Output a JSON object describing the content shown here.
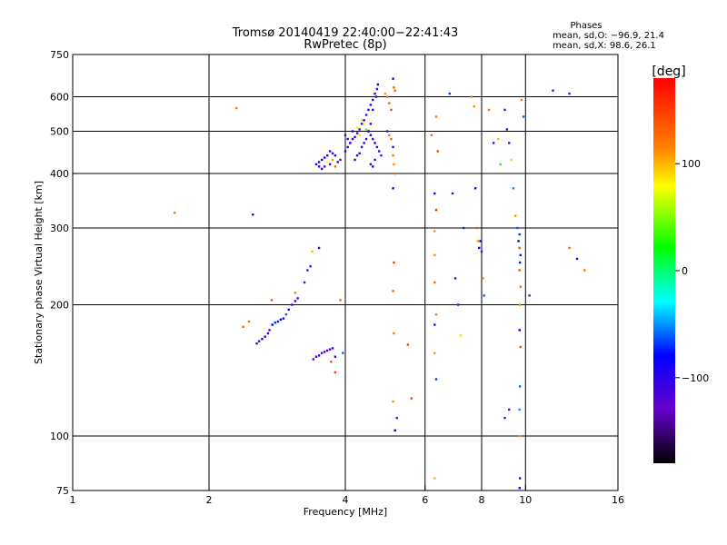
{
  "chart_data": {
    "type": "scatter",
    "title": "Tromsø 20140419 22:40:00−22:41:43",
    "subtitle": "RwPretec (8p)",
    "xlabel": "Frequency [MHz]",
    "ylabel": "Stationary phase Virtual Height [km]",
    "x_scale": "log",
    "y_scale": "log",
    "xlim": [
      1,
      16
    ],
    "ylim": [
      75,
      750
    ],
    "x_ticks": [
      1,
      2,
      4,
      6,
      8,
      10,
      16
    ],
    "y_ticks": [
      75,
      100,
      200,
      300,
      400,
      500,
      600,
      750
    ],
    "x_gridlines": [
      2,
      4,
      6,
      8,
      10
    ],
    "y_gridlines": [
      100,
      200,
      300,
      400,
      500,
      600
    ],
    "grid": true,
    "legend": {
      "header": "Phases",
      "line_o": "mean, sd,O: −96.9, 21.4",
      "line_x": "mean, sd,X:  98.6, 26.1",
      "placement": "top-right"
    },
    "colorbar": {
      "label": "[deg]",
      "range": [
        -180,
        180
      ],
      "ticks": [
        100,
        0,
        -100
      ],
      "tick_labels": [
        "100",
        "0",
        "−100"
      ]
    },
    "series": [
      {
        "values": [
          [
            1.68,
            325,
            120
          ],
          [
            2.3,
            565,
            120
          ],
          [
            2.5,
            322,
            -105
          ],
          [
            2.38,
            178,
            130
          ],
          [
            2.45,
            183,
            125
          ],
          [
            2.55,
            163,
            -110
          ],
          [
            2.58,
            165,
            -105
          ],
          [
            2.62,
            167,
            -100
          ],
          [
            2.66,
            169,
            -95
          ],
          [
            2.7,
            172,
            -100
          ],
          [
            2.72,
            175,
            -110
          ],
          [
            2.76,
            180,
            -80
          ],
          [
            2.8,
            182,
            -70
          ],
          [
            2.84,
            183,
            -75
          ],
          [
            2.88,
            185,
            -80
          ],
          [
            2.92,
            186,
            -90
          ],
          [
            2.96,
            190,
            -60
          ],
          [
            2.75,
            205,
            140
          ],
          [
            3.0,
            195,
            -100
          ],
          [
            3.05,
            200,
            -110
          ],
          [
            3.1,
            204,
            -120
          ],
          [
            3.14,
            207,
            -115
          ],
          [
            3.1,
            213,
            120
          ],
          [
            3.25,
            225,
            -130
          ],
          [
            3.3,
            240,
            -120
          ],
          [
            3.35,
            245,
            -110
          ],
          [
            3.38,
            265,
            100
          ],
          [
            3.5,
            270,
            -140
          ],
          [
            3.9,
            205,
            130
          ],
          [
            3.4,
            150,
            -130
          ],
          [
            3.45,
            152,
            -120
          ],
          [
            3.5,
            153,
            -110
          ],
          [
            3.55,
            155,
            -120
          ],
          [
            3.6,
            156,
            -100
          ],
          [
            3.65,
            157,
            -125
          ],
          [
            3.7,
            158,
            -115
          ],
          [
            3.75,
            159,
            -105
          ],
          [
            3.8,
            152,
            -110
          ],
          [
            3.72,
            148,
            140
          ],
          [
            3.8,
            140,
            150
          ],
          [
            3.95,
            155,
            -60
          ],
          [
            3.45,
            420,
            -110
          ],
          [
            3.5,
            425,
            -100
          ],
          [
            3.55,
            430,
            -95
          ],
          [
            3.6,
            435,
            -90
          ],
          [
            3.65,
            440,
            -105
          ],
          [
            3.7,
            450,
            -110
          ],
          [
            3.75,
            445,
            -95
          ],
          [
            3.8,
            440,
            -100
          ],
          [
            3.85,
            425,
            -105
          ],
          [
            3.7,
            420,
            -110
          ],
          [
            3.6,
            415,
            -115
          ],
          [
            3.55,
            410,
            -100
          ],
          [
            3.5,
            415,
            -90
          ],
          [
            3.65,
            425,
            80
          ],
          [
            3.75,
            430,
            110
          ],
          [
            3.8,
            415,
            130
          ],
          [
            3.9,
            430,
            -120
          ],
          [
            4.0,
            450,
            -100
          ],
          [
            4.05,
            460,
            -110
          ],
          [
            4.1,
            470,
            -105
          ],
          [
            4.15,
            480,
            -100
          ],
          [
            4.2,
            485,
            -95
          ],
          [
            4.25,
            495,
            -110
          ],
          [
            4.3,
            505,
            -105
          ],
          [
            4.35,
            520,
            -100
          ],
          [
            4.4,
            530,
            -95
          ],
          [
            4.45,
            545,
            -110
          ],
          [
            4.5,
            560,
            -105
          ],
          [
            4.55,
            575,
            -100
          ],
          [
            4.6,
            590,
            -95
          ],
          [
            4.65,
            610,
            -110
          ],
          [
            4.7,
            625,
            -105
          ],
          [
            4.72,
            640,
            -100
          ],
          [
            4.68,
            600,
            -95
          ],
          [
            4.6,
            560,
            -100
          ],
          [
            4.55,
            520,
            -105
          ],
          [
            4.5,
            500,
            -110
          ],
          [
            4.45,
            480,
            -100
          ],
          [
            4.4,
            470,
            -95
          ],
          [
            4.35,
            460,
            -105
          ],
          [
            4.3,
            445,
            -100
          ],
          [
            4.25,
            440,
            -110
          ],
          [
            4.2,
            430,
            -105
          ],
          [
            4.1,
            470,
            -120
          ],
          [
            4.05,
            480,
            -110
          ],
          [
            4.0,
            490,
            -120
          ],
          [
            4.15,
            500,
            -95
          ],
          [
            4.3,
            490,
            90
          ],
          [
            4.4,
            520,
            80
          ],
          [
            4.35,
            530,
            60
          ],
          [
            4.25,
            510,
            70
          ],
          [
            4.45,
            505,
            40
          ],
          [
            4.5,
            500,
            -90
          ],
          [
            4.55,
            490,
            -100
          ],
          [
            4.6,
            480,
            -110
          ],
          [
            4.65,
            470,
            -95
          ],
          [
            4.7,
            460,
            -100
          ],
          [
            4.75,
            450,
            -105
          ],
          [
            4.8,
            440,
            -110
          ],
          [
            4.65,
            430,
            -105
          ],
          [
            4.55,
            420,
            -100
          ],
          [
            4.6,
            415,
            -95
          ],
          [
            4.9,
            610,
            110
          ],
          [
            4.95,
            600,
            120
          ],
          [
            5.0,
            580,
            130
          ],
          [
            5.05,
            560,
            140
          ],
          [
            5.1,
            660,
            -80
          ],
          [
            5.12,
            630,
            140
          ],
          [
            5.15,
            620,
            130
          ],
          [
            4.95,
            500,
            -110
          ],
          [
            5.0,
            490,
            120
          ],
          [
            5.05,
            480,
            130
          ],
          [
            5.1,
            460,
            -100
          ],
          [
            5.1,
            440,
            120
          ],
          [
            5.12,
            420,
            110
          ],
          [
            5.15,
            400,
            130
          ],
          [
            5.1,
            370,
            -90
          ],
          [
            5.12,
            250,
            150
          ],
          [
            5.1,
            215,
            130
          ],
          [
            5.12,
            172,
            120
          ],
          [
            5.1,
            120,
            110
          ],
          [
            5.15,
            103,
            -80
          ],
          [
            5.2,
            110,
            -70
          ],
          [
            5.5,
            162,
            150
          ],
          [
            5.6,
            122,
            150
          ],
          [
            6.2,
            490,
            130
          ],
          [
            6.3,
            360,
            -90
          ],
          [
            6.35,
            330,
            160
          ],
          [
            6.3,
            295,
            110
          ],
          [
            6.4,
            450,
            150
          ],
          [
            6.35,
            540,
            120
          ],
          [
            6.3,
            260,
            110
          ],
          [
            6.3,
            225,
            130
          ],
          [
            6.35,
            190,
            120
          ],
          [
            6.3,
            180,
            -100
          ],
          [
            6.3,
            155,
            110
          ],
          [
            6.35,
            135,
            -70
          ],
          [
            6.3,
            80,
            100
          ],
          [
            6.8,
            610,
            -70
          ],
          [
            6.9,
            360,
            -120
          ],
          [
            7.0,
            230,
            -110
          ],
          [
            7.1,
            200,
            -120
          ],
          [
            7.2,
            170,
            60
          ],
          [
            7.3,
            300,
            -70
          ],
          [
            7.6,
            600,
            120
          ],
          [
            7.7,
            570,
            110
          ],
          [
            7.75,
            370,
            -80
          ],
          [
            7.8,
            300,
            140
          ],
          [
            7.85,
            280,
            110
          ],
          [
            7.9,
            270,
            -80
          ],
          [
            7.95,
            280,
            -100
          ],
          [
            8.0,
            265,
            -70
          ],
          [
            8.05,
            230,
            120
          ],
          [
            8.1,
            210,
            -60
          ],
          [
            8.3,
            560,
            120
          ],
          [
            8.5,
            470,
            -110
          ],
          [
            8.7,
            480,
            100
          ],
          [
            8.8,
            420,
            20
          ],
          [
            9.0,
            560,
            -130
          ],
          [
            9.1,
            505,
            -120
          ],
          [
            9.2,
            470,
            -110
          ],
          [
            9.3,
            430,
            60
          ],
          [
            9.4,
            370,
            -50
          ],
          [
            9.5,
            320,
            110
          ],
          [
            9.6,
            300,
            -60
          ],
          [
            9.7,
            290,
            -70
          ],
          [
            9.65,
            280,
            -80
          ],
          [
            9.7,
            270,
            140
          ],
          [
            9.75,
            260,
            -90
          ],
          [
            9.72,
            250,
            -100
          ],
          [
            9.7,
            240,
            140
          ],
          [
            9.75,
            220,
            130
          ],
          [
            9.72,
            200,
            110
          ],
          [
            9.7,
            175,
            -80
          ],
          [
            9.75,
            160,
            140
          ],
          [
            9.72,
            130,
            -60
          ],
          [
            9.7,
            115,
            -50
          ],
          [
            9.75,
            100,
            110
          ],
          [
            9.72,
            80,
            -90
          ],
          [
            9.7,
            76,
            -80
          ],
          [
            9.0,
            110,
            -130
          ],
          [
            9.2,
            115,
            -120
          ],
          [
            9.8,
            590,
            120
          ],
          [
            9.9,
            540,
            -60
          ],
          [
            10.2,
            210,
            -130
          ],
          [
            11.5,
            620,
            -130
          ],
          [
            12.5,
            610,
            -130
          ],
          [
            12.5,
            270,
            130
          ],
          [
            13.0,
            255,
            -110
          ],
          [
            13.5,
            240,
            120
          ]
        ]
      }
    ]
  }
}
